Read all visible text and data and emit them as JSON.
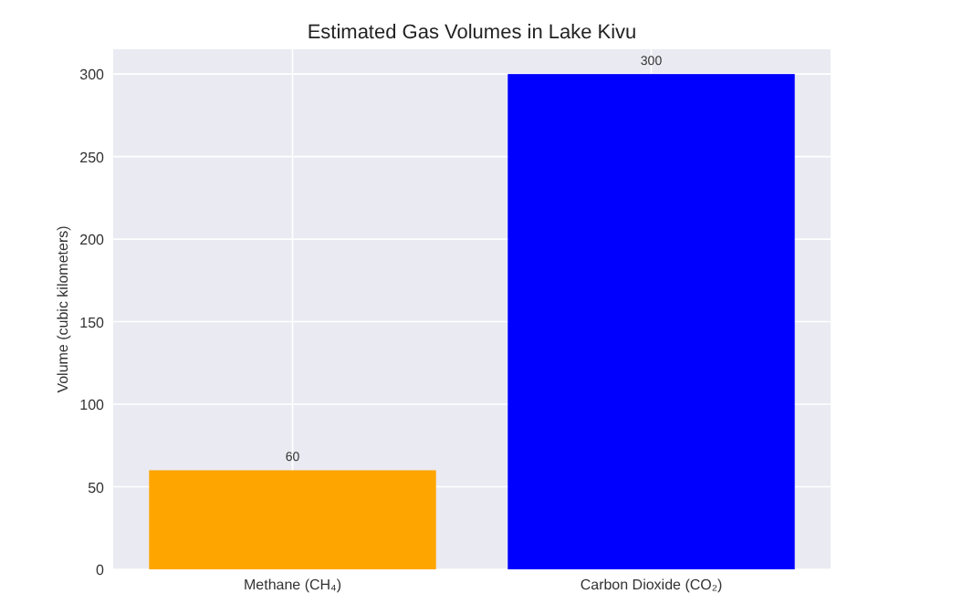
{
  "chart_data": {
    "type": "bar",
    "title": "Estimated Gas Volumes in Lake Kivu",
    "ylabel": "Volume (cubic kilometers)",
    "categories": [
      "Methane (CH₄)",
      "Carbon Dioxide (CO₂)"
    ],
    "values": [
      60,
      300
    ],
    "colors": [
      "#ffa500",
      "#0000ff"
    ],
    "ylim": [
      0,
      315
    ],
    "yticks": [
      0,
      50,
      100,
      150,
      200,
      250,
      300
    ],
    "grid": true,
    "data_labels": true
  }
}
